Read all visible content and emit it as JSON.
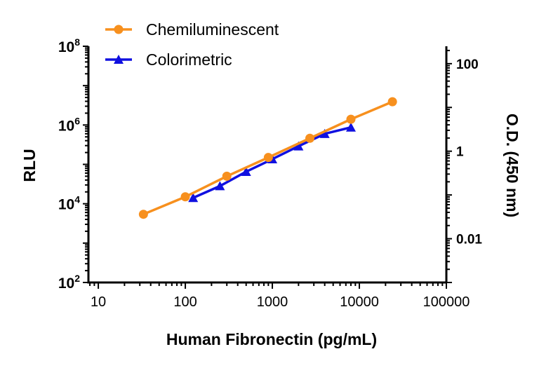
{
  "chart_data": {
    "type": "line",
    "xlabel": "Human Fibronectin (pg/mL)",
    "ylabel": "RLU",
    "y2label": "O.D. (450 nm)",
    "xscale": "log",
    "yscale": "log",
    "y2scale": "log",
    "xlim": [
      7.7,
      100000
    ],
    "ylim": [
      100,
      100000000
    ],
    "y2lim": [
      0.001,
      250
    ],
    "x_ticks": [
      "10",
      "100",
      "1000",
      "10000",
      "100000"
    ],
    "x_tick_values": [
      10,
      100,
      1000,
      10000,
      100000
    ],
    "y_ticks": [
      {
        "base": "10",
        "exp": "2",
        "value": 100
      },
      {
        "base": "10",
        "exp": "4",
        "value": 10000
      },
      {
        "base": "10",
        "exp": "6",
        "value": 1000000
      },
      {
        "base": "10",
        "exp": "8",
        "value": 100000000
      }
    ],
    "y2_ticks": [
      "0.01",
      "1",
      "100"
    ],
    "y2_tick_values": [
      0.01,
      1,
      100
    ],
    "grid": false,
    "legend_placement": "top-left",
    "series": [
      {
        "name": "Chemiluminescent",
        "axis": "left",
        "color": "#F7901E",
        "marker": "circle",
        "x": [
          33,
          100,
          300,
          900,
          2700,
          8000,
          24000
        ],
        "y": [
          5400,
          15000,
          50000,
          150000,
          460000,
          1400000,
          3900000
        ]
      },
      {
        "name": "Colorimetric",
        "axis": "right",
        "color": "#1010E0",
        "marker": "triangle",
        "x": [
          123,
          250,
          500,
          1000,
          2000,
          4000,
          8000
        ],
        "y": [
          0.086,
          0.16,
          0.34,
          0.66,
          1.3,
          2.5,
          3.5
        ]
      }
    ]
  }
}
